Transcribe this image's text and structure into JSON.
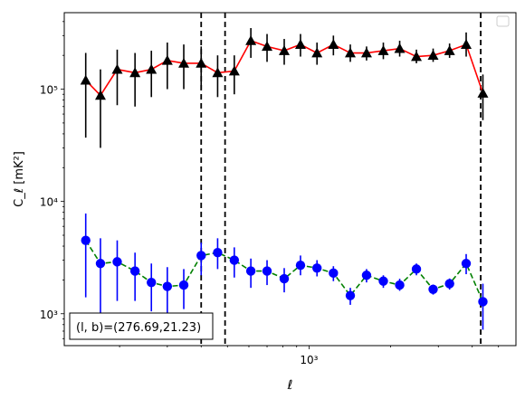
{
  "chart_data": {
    "type": "scatter",
    "xlabel": "ℓ",
    "ylabel": "C_ℓ  [mK²]",
    "xscale": "log",
    "yscale": "log",
    "xlim": [
      125,
      5800
    ],
    "ylim": [
      520,
      480000
    ],
    "x_ticks": [
      {
        "value": 1000,
        "label": "10³"
      }
    ],
    "y_ticks": [
      {
        "value": 1000,
        "label": "10³"
      },
      {
        "value": 10000,
        "label": "10⁴"
      },
      {
        "value": 100000,
        "label": "10⁵"
      }
    ],
    "grid": false,
    "legend": {
      "placement": "top-right",
      "entries": []
    },
    "vlines": [
      {
        "x": 400,
        "style": "dashed"
      },
      {
        "x": 490,
        "style": "dashed"
      },
      {
        "x": 4300,
        "style": "dashed"
      }
    ],
    "annotation": {
      "label": "(l, b)=(276.69,21.23)",
      "placement": "bottom-left"
    },
    "series": [
      {
        "color": "#000000",
        "line_color": "#ff0000",
        "line_style": "solid",
        "marker": "triangle",
        "points": [
          {
            "x": 150,
            "y": 120000,
            "lo": 37000,
            "hi": 210000
          },
          {
            "x": 170,
            "y": 88000,
            "lo": 30000,
            "hi": 150000
          },
          {
            "x": 196,
            "y": 150000,
            "lo": 72000,
            "hi": 225000
          },
          {
            "x": 228,
            "y": 140000,
            "lo": 70000,
            "hi": 210000
          },
          {
            "x": 262,
            "y": 150000,
            "lo": 85000,
            "hi": 220000
          },
          {
            "x": 300,
            "y": 180000,
            "lo": 100000,
            "hi": 260000
          },
          {
            "x": 345,
            "y": 170000,
            "lo": 100000,
            "hi": 250000
          },
          {
            "x": 400,
            "y": 170000,
            "lo": 100000,
            "hi": 240000
          },
          {
            "x": 460,
            "y": 140000,
            "lo": 85000,
            "hi": 200000
          },
          {
            "x": 530,
            "y": 145000,
            "lo": 90000,
            "hi": 200000
          },
          {
            "x": 610,
            "y": 270000,
            "lo": 190000,
            "hi": 350000
          },
          {
            "x": 700,
            "y": 240000,
            "lo": 175000,
            "hi": 310000
          },
          {
            "x": 810,
            "y": 220000,
            "lo": 165000,
            "hi": 280000
          },
          {
            "x": 930,
            "y": 250000,
            "lo": 195000,
            "hi": 310000
          },
          {
            "x": 1070,
            "y": 210000,
            "lo": 165000,
            "hi": 260000
          },
          {
            "x": 1230,
            "y": 250000,
            "lo": 200000,
            "hi": 300000
          },
          {
            "x": 1420,
            "y": 210000,
            "lo": 175000,
            "hi": 250000
          },
          {
            "x": 1630,
            "y": 210000,
            "lo": 180000,
            "hi": 240000
          },
          {
            "x": 1880,
            "y": 220000,
            "lo": 185000,
            "hi": 260000
          },
          {
            "x": 2160,
            "y": 230000,
            "lo": 195000,
            "hi": 270000
          },
          {
            "x": 2490,
            "y": 195000,
            "lo": 170000,
            "hi": 225000
          },
          {
            "x": 2870,
            "y": 200000,
            "lo": 175000,
            "hi": 230000
          },
          {
            "x": 3300,
            "y": 220000,
            "lo": 190000,
            "hi": 255000
          },
          {
            "x": 3800,
            "y": 250000,
            "lo": 195000,
            "hi": 320000
          },
          {
            "x": 4380,
            "y": 92000,
            "lo": 53000,
            "hi": 135000
          }
        ]
      },
      {
        "color": "#0000ff",
        "line_color": "#008000",
        "line_style": "dashed",
        "marker": "circle",
        "points": [
          {
            "x": 150,
            "y": 4500,
            "lo": 1400,
            "hi": 7800
          },
          {
            "x": 170,
            "y": 2800,
            "lo": 1000,
            "hi": 4700
          },
          {
            "x": 196,
            "y": 2900,
            "lo": 1300,
            "hi": 4500
          },
          {
            "x": 228,
            "y": 2400,
            "lo": 1300,
            "hi": 3500
          },
          {
            "x": 262,
            "y": 1900,
            "lo": 1050,
            "hi": 2800
          },
          {
            "x": 300,
            "y": 1750,
            "lo": 1000,
            "hi": 2600
          },
          {
            "x": 345,
            "y": 1800,
            "lo": 1100,
            "hi": 2500
          },
          {
            "x": 400,
            "y": 3300,
            "lo": 2200,
            "hi": 4300
          },
          {
            "x": 460,
            "y": 3500,
            "lo": 2500,
            "hi": 4700
          },
          {
            "x": 530,
            "y": 3000,
            "lo": 2100,
            "hi": 3900
          },
          {
            "x": 610,
            "y": 2400,
            "lo": 1700,
            "hi": 3100
          },
          {
            "x": 700,
            "y": 2400,
            "lo": 1800,
            "hi": 3000
          },
          {
            "x": 810,
            "y": 2050,
            "lo": 1550,
            "hi": 2550
          },
          {
            "x": 930,
            "y": 2700,
            "lo": 2200,
            "hi": 3300
          },
          {
            "x": 1070,
            "y": 2550,
            "lo": 2150,
            "hi": 3000
          },
          {
            "x": 1230,
            "y": 2300,
            "lo": 1950,
            "hi": 2650
          },
          {
            "x": 1420,
            "y": 1450,
            "lo": 1200,
            "hi": 1700
          },
          {
            "x": 1630,
            "y": 2200,
            "lo": 1900,
            "hi": 2500
          },
          {
            "x": 1880,
            "y": 1950,
            "lo": 1700,
            "hi": 2200
          },
          {
            "x": 2160,
            "y": 1800,
            "lo": 1600,
            "hi": 2050
          },
          {
            "x": 2490,
            "y": 2500,
            "lo": 2200,
            "hi": 2800
          },
          {
            "x": 2870,
            "y": 1650,
            "lo": 1480,
            "hi": 1820
          },
          {
            "x": 3300,
            "y": 1850,
            "lo": 1640,
            "hi": 2060
          },
          {
            "x": 3800,
            "y": 2800,
            "lo": 2250,
            "hi": 3400
          },
          {
            "x": 4380,
            "y": 1280,
            "lo": 720,
            "hi": 1850
          }
        ]
      }
    ]
  }
}
